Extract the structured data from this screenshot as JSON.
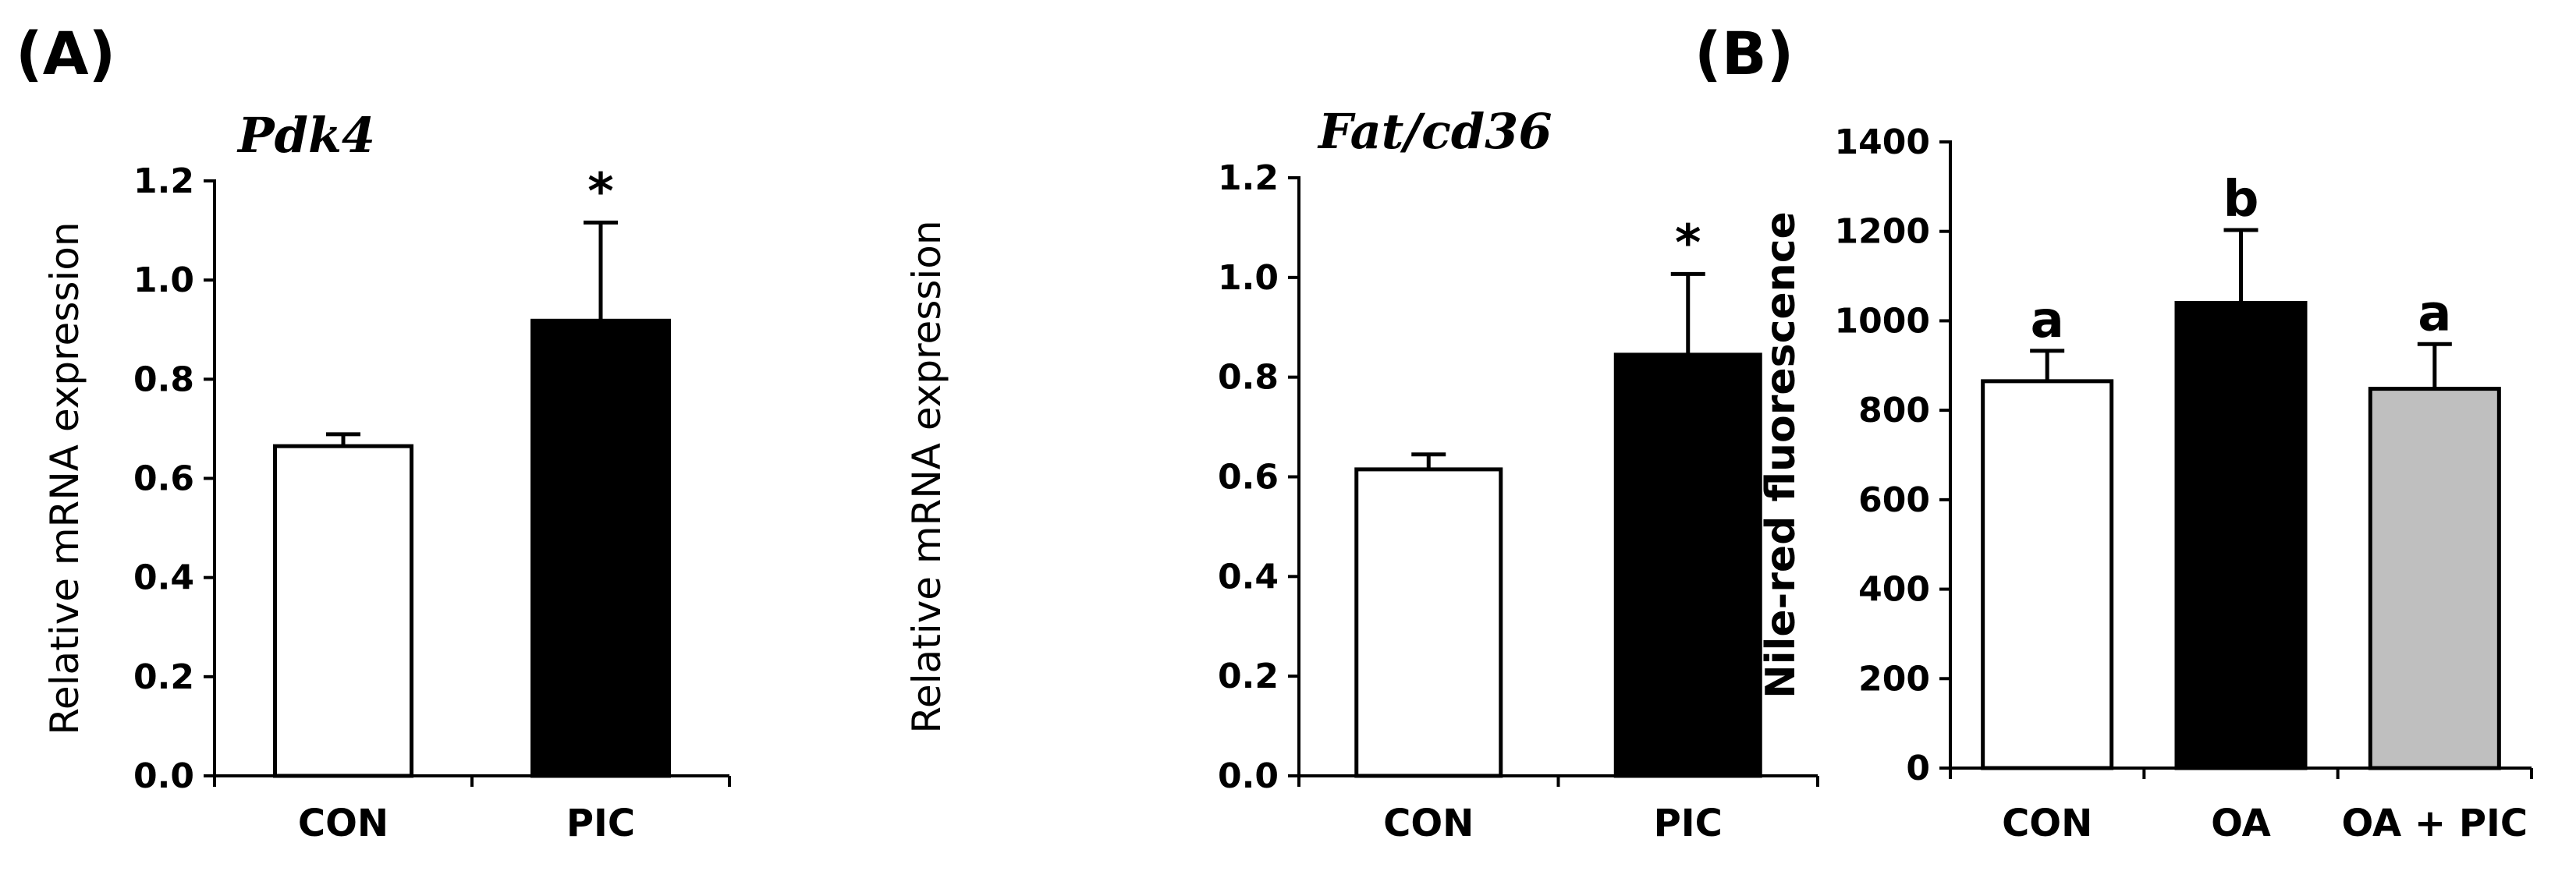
{
  "panel_labels": [
    "(A)",
    "(B)"
  ],
  "chart_data": [
    {
      "type": "bar",
      "title": "Pdk4",
      "ylabel": "Relative mRNA expression",
      "xlabel": "",
      "categories": [
        "CON",
        "PIC"
      ],
      "values": [
        0.665,
        0.918
      ],
      "errors": [
        0.024,
        0.198
      ],
      "annotations": [
        "",
        "*"
      ],
      "bar_colors": [
        "#ffffff",
        "#000000"
      ],
      "ylim": [
        0,
        1.2
      ],
      "yticks": [
        "0.0",
        "0.2",
        "0.4",
        "0.6",
        "0.8",
        "1.0",
        "1.2"
      ],
      "grid": false
    },
    {
      "type": "bar",
      "title": "Fat/cd36",
      "ylabel": "Relative mRNA expression",
      "xlabel": "",
      "categories": [
        "CON",
        "PIC"
      ],
      "values": [
        0.615,
        0.845
      ],
      "errors": [
        0.03,
        0.162
      ],
      "annotations": [
        "",
        "*"
      ],
      "bar_colors": [
        "#ffffff",
        "#000000"
      ],
      "ylim": [
        0,
        1.2
      ],
      "yticks": [
        "0.0",
        "0.2",
        "0.4",
        "0.6",
        "0.8",
        "1.0",
        "1.2"
      ],
      "grid": false
    },
    {
      "type": "bar",
      "title": "",
      "ylabel": "Nile-red fluorescence",
      "xlabel": "",
      "categories": [
        "CON",
        "OA",
        "OA + PIC"
      ],
      "values": [
        865,
        1040,
        848
      ],
      "errors": [
        68,
        163,
        100
      ],
      "annotations": [
        "a",
        "b",
        "a"
      ],
      "bar_colors": [
        "#ffffff",
        "#000000",
        "#bfbfbf"
      ],
      "ylim": [
        0,
        1400
      ],
      "yticks": [
        "0",
        "200",
        "400",
        "600",
        "800",
        "1000",
        "1200",
        "1400"
      ],
      "grid": false
    }
  ]
}
